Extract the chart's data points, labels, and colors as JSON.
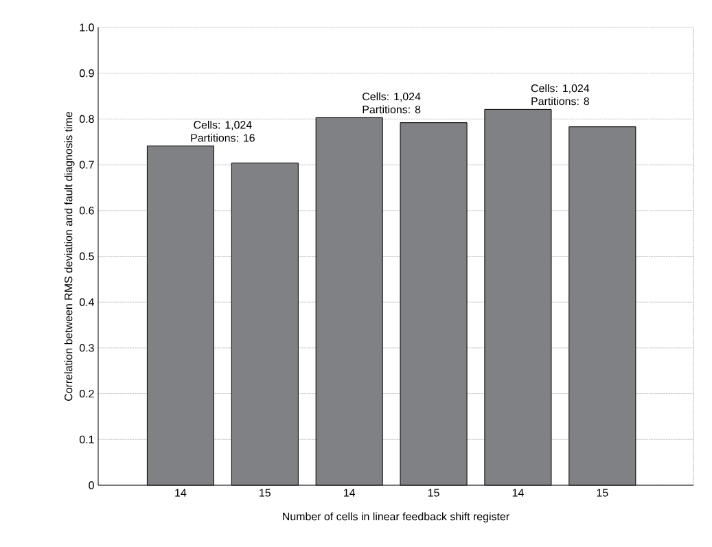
{
  "chart_data": {
    "type": "bar",
    "xlabel": "Number of cells in linear feedback shift register",
    "ylabel": "Correlation between RMS deviation and fault diagnosis time",
    "categories": [
      "14",
      "15",
      "14",
      "15",
      "14",
      "15"
    ],
    "values": [
      0.741,
      0.704,
      0.803,
      0.792,
      0.821,
      0.783
    ],
    "color": "#808184",
    "ylim": [
      0,
      1
    ],
    "yticks": [
      0,
      0.1,
      0.2,
      0.3,
      0.4,
      0.5,
      0.6,
      0.7,
      0.8,
      0.9,
      {
        "value": 1,
        "label": "1.0"
      }
    ],
    "grid": "y",
    "annotations": [
      "Cells: 1,024",
      "Partitions: 16",
      "Cells: 1,024",
      "Partitions: 8",
      "Cells: 1,024",
      "Partitions: 8"
    ]
  }
}
